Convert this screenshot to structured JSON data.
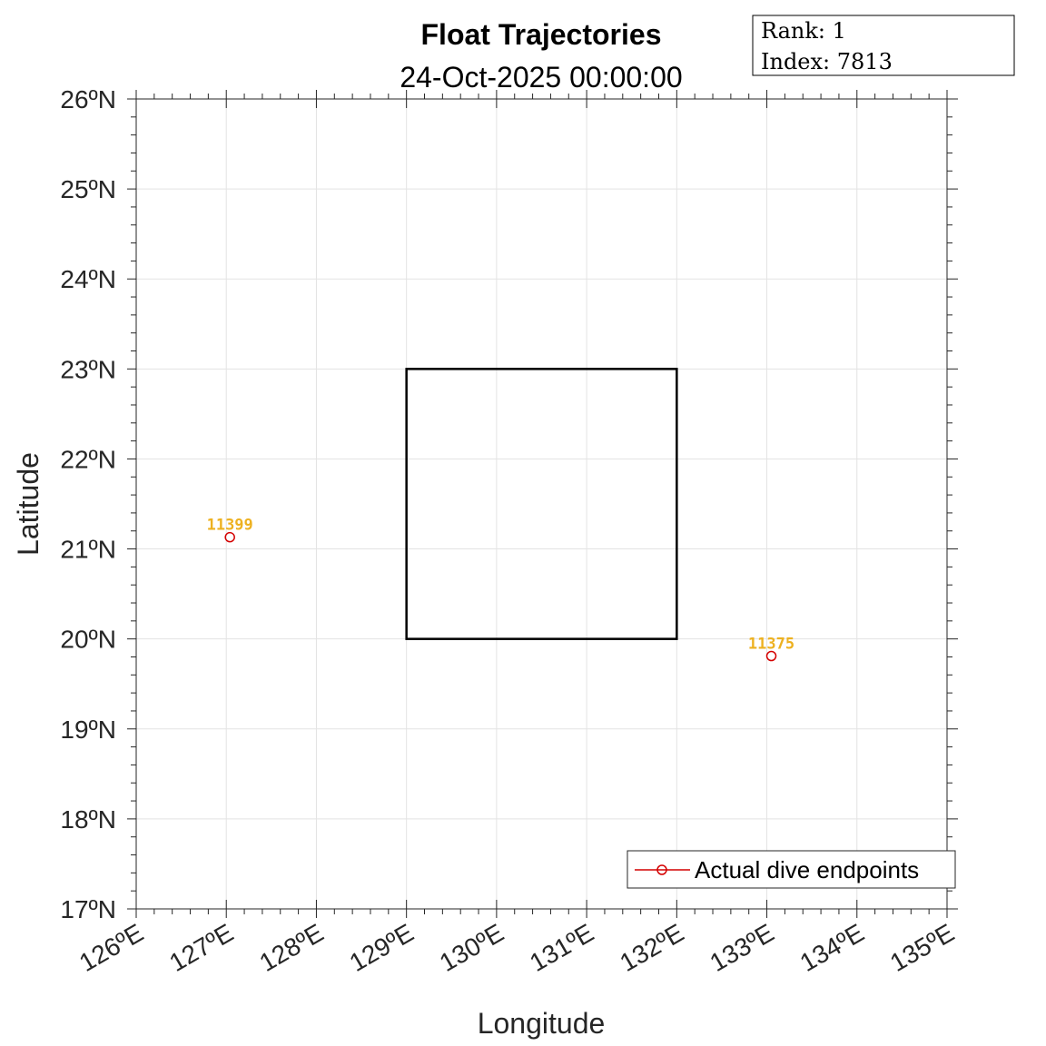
{
  "chart_data": {
    "type": "scatter",
    "title": "Float Trajectories",
    "subtitle": "24-Oct-2025 00:00:00",
    "xlabel": "Longitude",
    "ylabel": "Latitude",
    "xlim": [
      126,
      135
    ],
    "ylim": [
      17,
      26
    ],
    "grid": true,
    "xticks": [
      "126ºE",
      "127ºE",
      "128ºE",
      "129ºE",
      "130ºE",
      "131ºE",
      "132ºE",
      "133ºE",
      "134ºE",
      "135ºE"
    ],
    "yticks": [
      "17ºN",
      "18ºN",
      "19ºN",
      "20ºN",
      "21ºN",
      "22ºN",
      "23ºN",
      "24ºN",
      "25ºN",
      "26ºN"
    ],
    "region_box": {
      "lon": [
        129,
        132
      ],
      "lat": [
        20,
        23
      ]
    },
    "series": [
      {
        "name": "Actual dive endpoints",
        "color": "#D40000",
        "points": [
          {
            "label": "11399",
            "lon": 127.04,
            "lat": 21.13
          },
          {
            "label": "11375",
            "lon": 133.05,
            "lat": 19.81
          }
        ]
      }
    ],
    "label_color": "#EDB120",
    "legend_position": "bottom-right",
    "info_box": {
      "rank": "Rank:  1",
      "index": "Index:  7813"
    }
  }
}
